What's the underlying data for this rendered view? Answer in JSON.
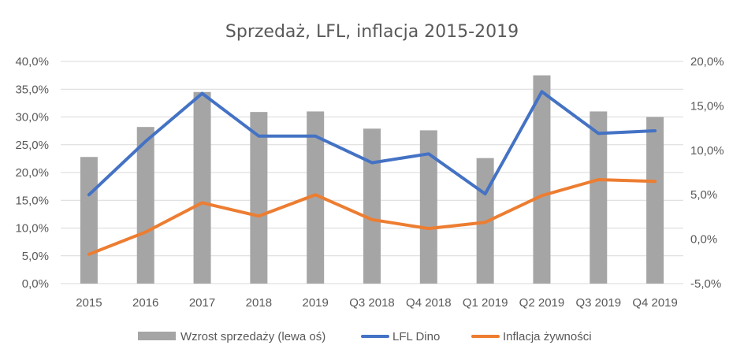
{
  "chart_data": {
    "type": "bar",
    "title": "Sprzedaż, LFL, inflacja 2015-2019",
    "categories": [
      "2015",
      "2016",
      "2017",
      "2018",
      "2019",
      "Q3 2018",
      "Q4 2018",
      "Q1 2019",
      "Q2 2019",
      "Q3 2019",
      "Q4 2019"
    ],
    "y_left": {
      "ylim": [
        0,
        40
      ],
      "ticks": [
        "0,0%",
        "5,0%",
        "10,0%",
        "15,0%",
        "20,0%",
        "25,0%",
        "30,0%",
        "35,0%",
        "40,0%"
      ]
    },
    "y_right": {
      "ylim": [
        -5,
        20
      ],
      "ticks": [
        "-5,0%",
        "0,0%",
        "5,0%",
        "10,0%",
        "15,0%",
        "20,0%"
      ]
    },
    "grid": true,
    "legend_position": "bottom",
    "series": [
      {
        "name": "Wzrost sprzedaży (lewa oś)",
        "type": "bar",
        "axis": "left",
        "color": "#a5a5a5",
        "values": [
          22.8,
          28.2,
          34.5,
          30.9,
          31.0,
          27.9,
          27.6,
          22.6,
          37.5,
          31.0,
          30.0
        ]
      },
      {
        "name": "LFL Dino",
        "type": "line",
        "axis": "right",
        "color": "#4472c4",
        "values": [
          5.0,
          11.0,
          16.4,
          11.6,
          11.6,
          8.6,
          9.6,
          5.1,
          16.6,
          11.9,
          12.2
        ]
      },
      {
        "name": "Inflacja żywności",
        "type": "line",
        "axis": "right",
        "color": "#ed7d31",
        "values": [
          -1.7,
          0.8,
          4.1,
          2.6,
          5.0,
          2.2,
          1.2,
          1.9,
          4.9,
          6.7,
          6.5
        ]
      }
    ]
  }
}
